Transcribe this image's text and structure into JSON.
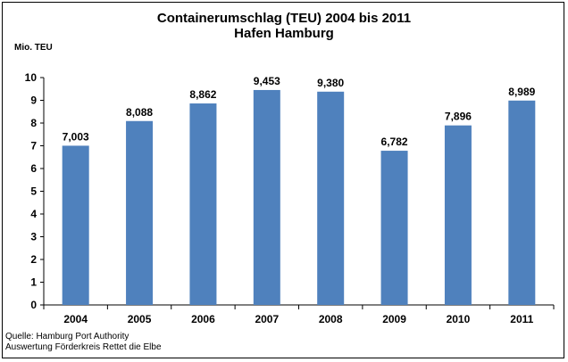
{
  "chart_data": {
    "type": "bar",
    "title": "Containerumschlag (TEU) 2004 bis 2011",
    "subtitle": "Hafen Hamburg",
    "ylabel": "Mio. TEU",
    "xlabel": "",
    "categories": [
      "2004",
      "2005",
      "2006",
      "2007",
      "2008",
      "2009",
      "2010",
      "2011"
    ],
    "values": [
      7.003,
      8.088,
      8.862,
      9.453,
      9.38,
      6.782,
      7.896,
      8.989
    ],
    "data_labels": [
      "7,003",
      "8,088",
      "8,862",
      "9,453",
      "9,380",
      "6,782",
      "7,896",
      "8,989"
    ],
    "ylim": [
      0,
      10
    ],
    "yticks": [
      0,
      1,
      2,
      3,
      4,
      5,
      6,
      7,
      8,
      9,
      10
    ],
    "grid": false,
    "bar_color": "#4f81bd",
    "legend": "none"
  },
  "footer": {
    "source_line1": "Quelle: Hamburg Port Authority",
    "source_line2": "Auswertung Förderkreis Rettet die Elbe"
  }
}
